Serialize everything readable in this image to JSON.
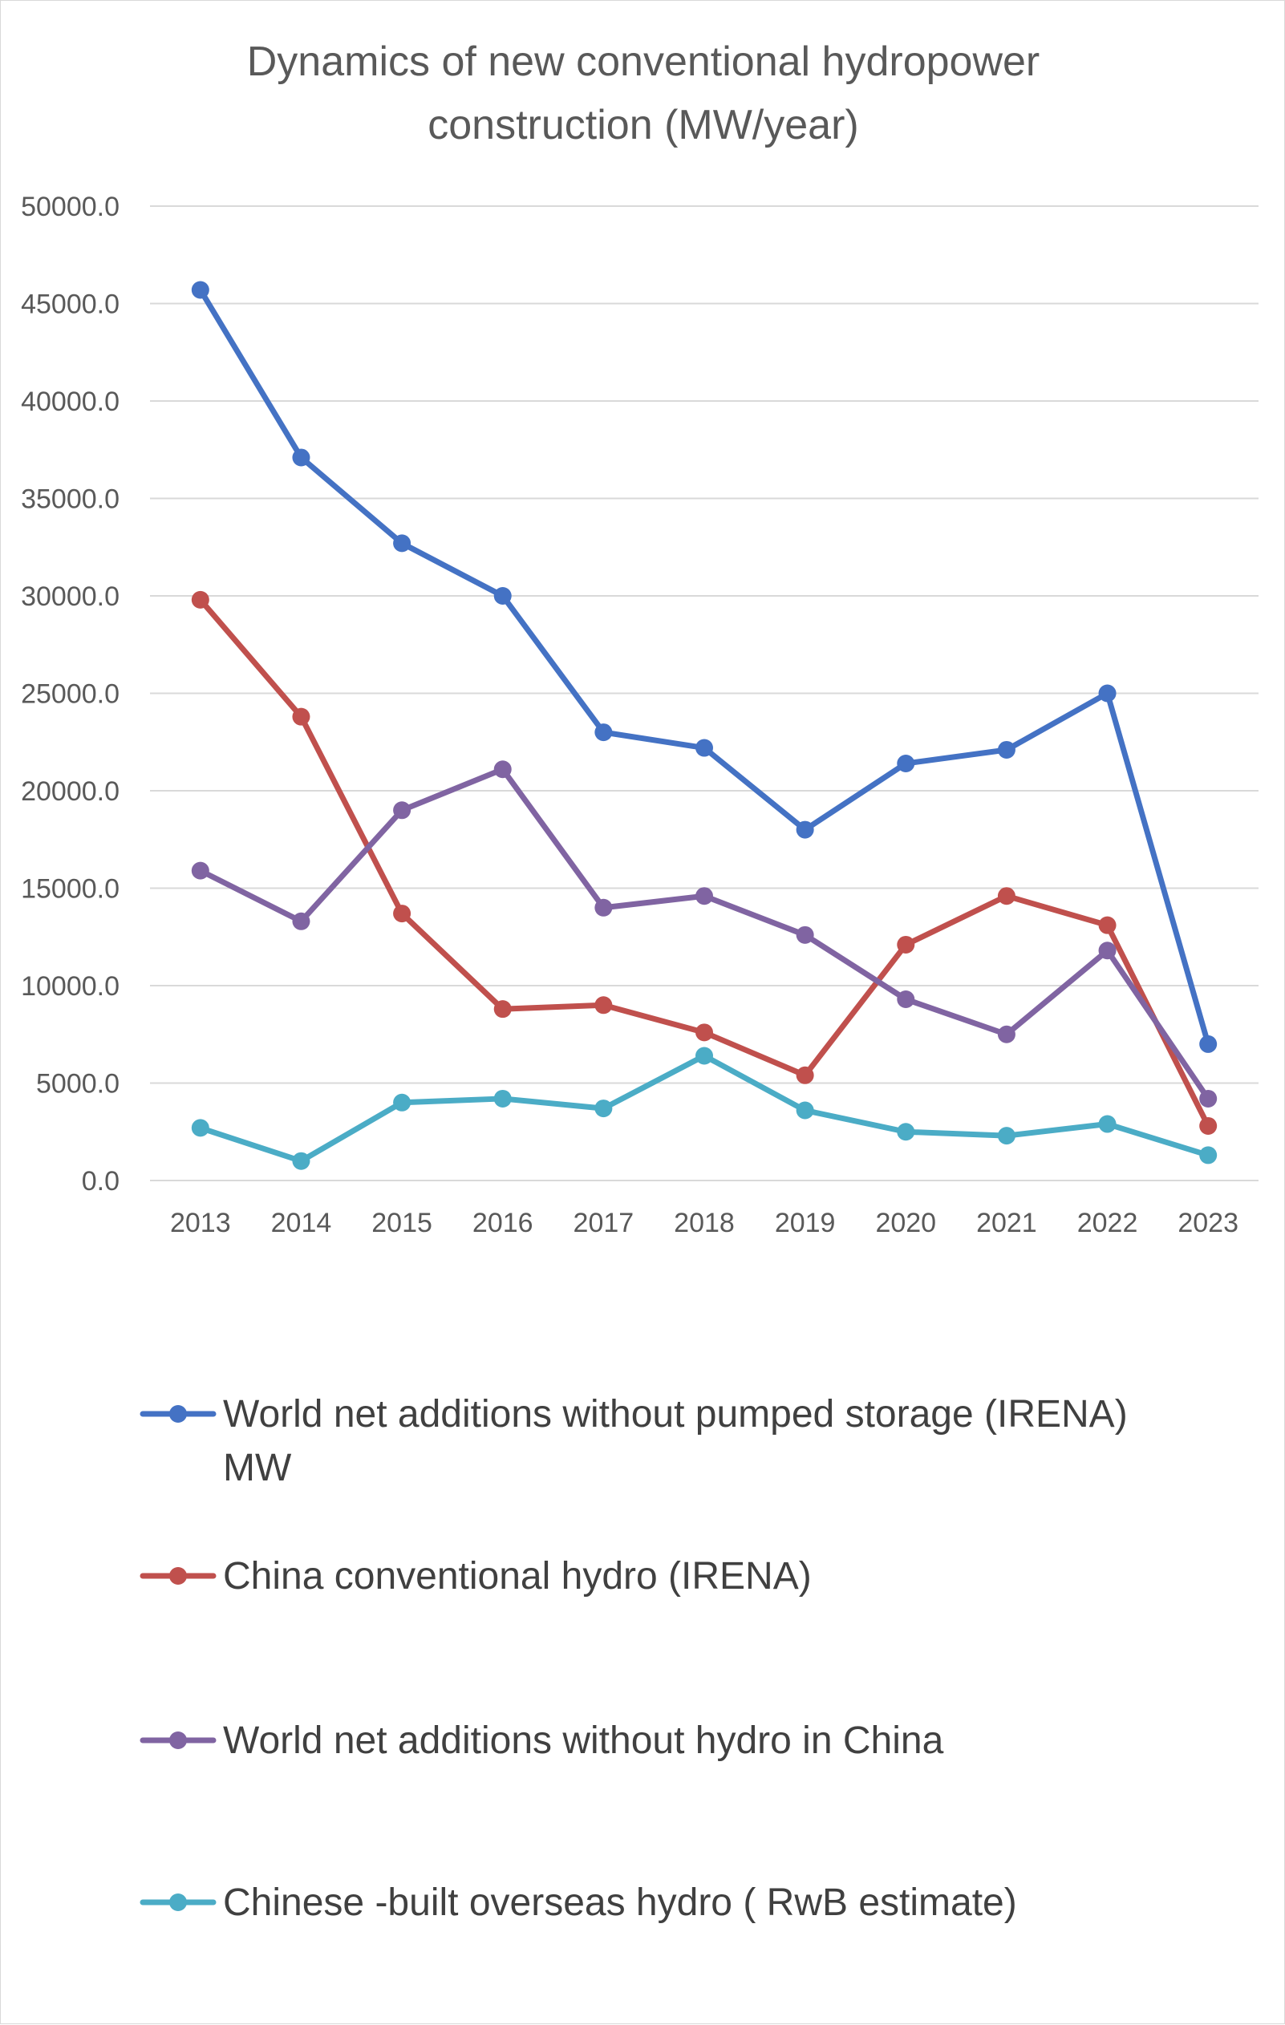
{
  "chart_data": {
    "type": "line",
    "title_lines": [
      "Dynamics of new  conventional  hydropower",
      "construction (MW/year)"
    ],
    "xlabel": "",
    "ylabel": "",
    "categories": [
      "2013",
      "2014",
      "2015",
      "2016",
      "2017",
      "2018",
      "2019",
      "2020",
      "2021",
      "2022",
      "2023"
    ],
    "y_tick_labels": [
      "0.0",
      "5000.0",
      "10000.0",
      "15000.0",
      "20000.0",
      "25000.0",
      "30000.0",
      "35000.0",
      "40000.0",
      "45000.0",
      "50000.0"
    ],
    "ylim": [
      0,
      50000
    ],
    "y_step": 5000,
    "grid": "horizontal",
    "legend_position": "bottom",
    "series": [
      {
        "name_lines": [
          "World net additions without pumped storage (IRENA)",
          "MW"
        ],
        "color": "#4472c4",
        "values": [
          45700,
          37100,
          32700,
          30000,
          23000,
          22200,
          18000,
          21400,
          22100,
          25000,
          7000
        ]
      },
      {
        "name_lines": [
          "China conventional hydro (IRENA)"
        ],
        "color": "#c0504d",
        "values": [
          29800,
          23800,
          13700,
          8800,
          9000,
          7600,
          5400,
          12100,
          14600,
          13100,
          2800
        ]
      },
      {
        "name_lines": [
          "World net additions without hydro in China"
        ],
        "color": "#8064a2",
        "values": [
          15900,
          13300,
          19000,
          21100,
          14000,
          14600,
          12600,
          9300,
          7500,
          11800,
          4200
        ]
      },
      {
        "name_lines": [
          "Chinese -built overseas  hydro ( RwB estimate)"
        ],
        "color": "#4bacc6",
        "values": [
          2700,
          1000,
          4000,
          4200,
          3700,
          6400,
          3600,
          2500,
          2300,
          2900,
          1300
        ]
      }
    ]
  }
}
